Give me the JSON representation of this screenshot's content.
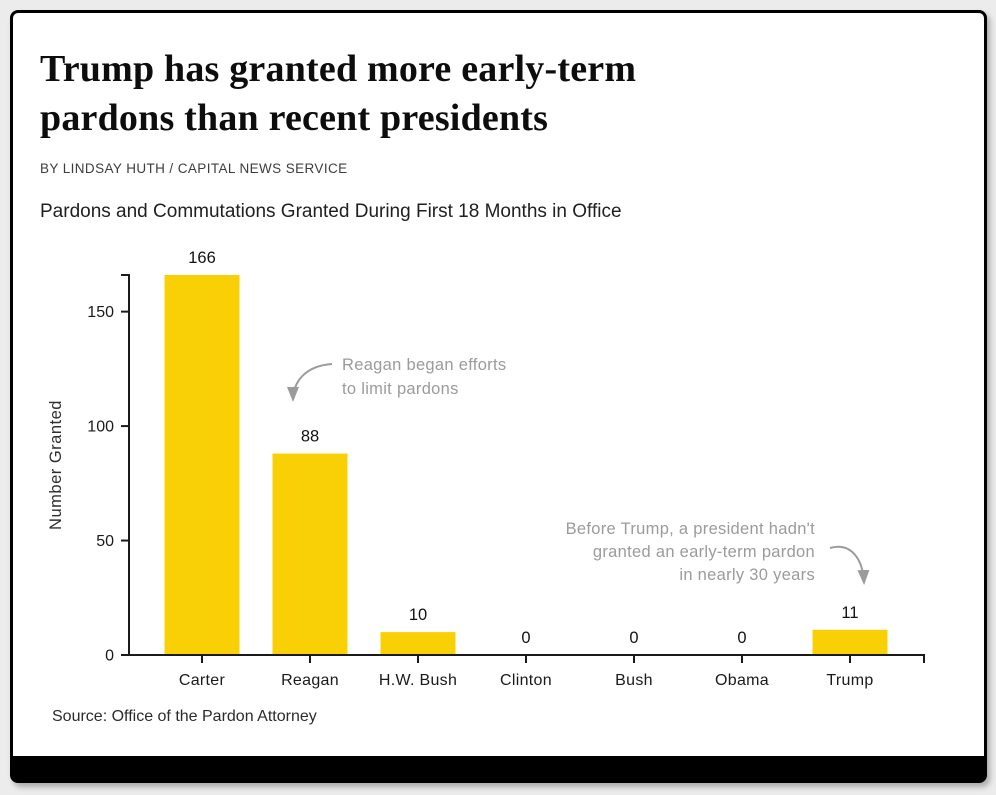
{
  "page": {
    "title": "Trump has granted more early-term\npardons than recent presidents",
    "byline": "BY LINDSAY HUTH / CAPITAL NEWS SERVICE",
    "subtitle": "Pardons and Commutations Granted During First 18 Months in Office",
    "source": "Source: Office of the Pardon Attorney"
  },
  "colors": {
    "bar": "#F9D005",
    "axis": "#1a1a1a",
    "value_label": "#111111",
    "annotation": "#9b9b9b",
    "background": "#ececec",
    "card_border": "#000000"
  },
  "chart_data": {
    "type": "bar",
    "categories": [
      "Carter",
      "Reagan",
      "H.W. Bush",
      "Clinton",
      "Bush",
      "Obama",
      "Trump"
    ],
    "values": [
      166,
      88,
      10,
      0,
      0,
      0,
      11
    ],
    "value_labels": [
      "166",
      "88",
      "10",
      "0",
      "0",
      "0",
      "11"
    ],
    "title": "Pardons and Commutations Granted During First 18 Months in Office",
    "xlabel": "",
    "ylabel": "Number Granted",
    "yticks": [
      0,
      50,
      100,
      150
    ],
    "ytick_labels": [
      "0",
      "50",
      "100",
      "150"
    ],
    "ylim": [
      0,
      166
    ],
    "grid": false,
    "legend": null,
    "bar_color": "#F9D005",
    "annotations": [
      {
        "lines": [
          "Reagan began efforts",
          "to limit pardons"
        ],
        "align": "left",
        "target": "Reagan"
      },
      {
        "lines": [
          "Before Trump, a president hadn't",
          "granted an early-term pardon",
          "in nearly 30 years"
        ],
        "align": "right",
        "target": "Trump"
      }
    ]
  }
}
